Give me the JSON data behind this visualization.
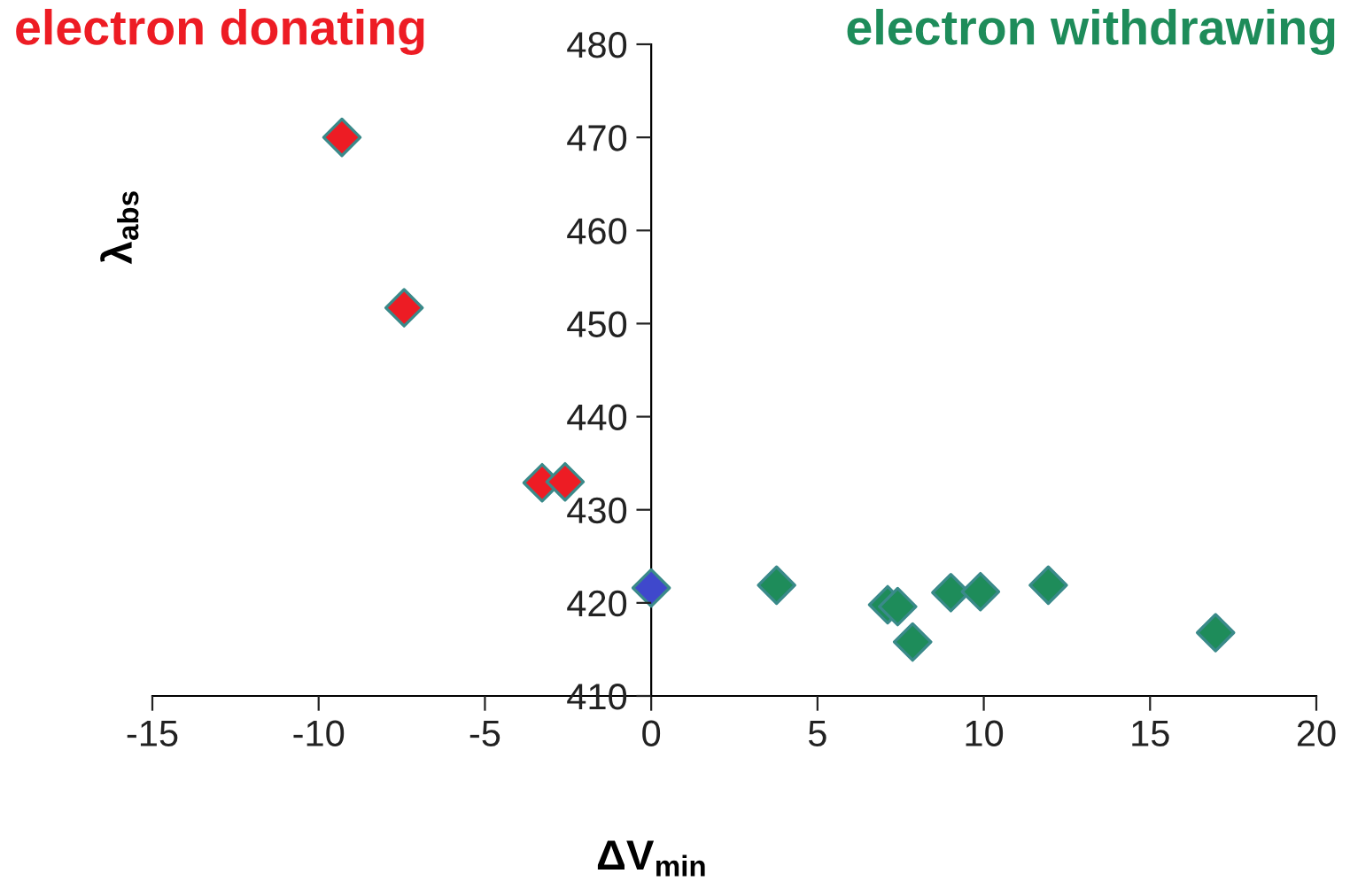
{
  "chart_data": {
    "type": "scatter",
    "xlabel": "ΔV$_{min}$",
    "ylabel": "λ$_{abs}$",
    "annotations": [
      "electron donating",
      "electron withdrawing"
    ],
    "xlim": [
      -15,
      20
    ],
    "xticks": [
      -15,
      -10,
      -5,
      0,
      5,
      10,
      15,
      20
    ],
    "ylim": [
      410,
      480
    ],
    "yticks": [
      410,
      420,
      430,
      440,
      450,
      460,
      470,
      480
    ],
    "marker": "diamond",
    "grid": false,
    "legend": false,
    "series": [
      {
        "color": "#ed1c24",
        "x": [
          -9.3,
          -7.43,
          -3.28,
          -2.59
        ],
        "values": [
          470,
          451.7,
          432.9,
          433
        ]
      },
      {
        "color": "#3f48cc",
        "x": [
          0
        ],
        "values": [
          421.6
        ]
      },
      {
        "color": "#1e8c5a",
        "x": [
          3.77,
          7.11,
          7.41,
          7.86,
          9.01,
          9.9,
          11.94,
          16.97
        ],
        "values": [
          421.9,
          419.8,
          419.6,
          415.8,
          421.1,
          421.2,
          421.9,
          416.8
        ]
      }
    ]
  }
}
